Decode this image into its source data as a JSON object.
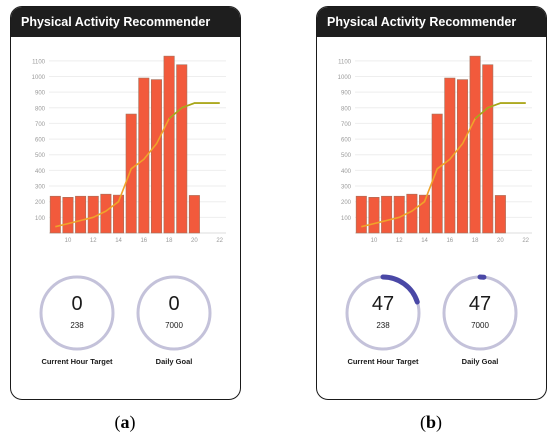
{
  "colors": {
    "bar": "#f25a3c",
    "bar_stroke": "#a4705a",
    "line": "#a2a81a",
    "line_dark": "#f0a32a",
    "ring": "#c4c2da",
    "progress": "#4a48a6",
    "appbar": "#1e1e1e"
  },
  "panels": [
    {
      "id": "a",
      "caption_open": "(",
      "caption_letter": "a",
      "caption_close": ")",
      "appbar_title": "Physical Activity Recommender",
      "gauges": {
        "current_hour": {
          "value": "0",
          "sub": "238",
          "label": "Current Hour Target",
          "progress": 0
        },
        "daily_goal": {
          "value": "0",
          "sub": "7000",
          "label": "Daily Goal",
          "progress": 0
        }
      }
    },
    {
      "id": "b",
      "caption_open": "(",
      "caption_letter": "b",
      "caption_close": ")",
      "appbar_title": "Physical Activity Recommender",
      "gauges": {
        "current_hour": {
          "value": "47",
          "sub": "238",
          "label": "Current Hour Target",
          "progress": 0.2
        },
        "daily_goal": {
          "value": "47",
          "sub": "7000",
          "label": "Daily Goal",
          "progress": 0.007
        }
      }
    }
  ],
  "chart_data": [
    {
      "type": "bar",
      "panel": "a",
      "ylim": [
        0,
        1150
      ],
      "yticks": [
        "100",
        "200",
        "300",
        "400",
        "500",
        "600",
        "700",
        "800",
        "900",
        "1000",
        "1100"
      ],
      "xticks": [
        "10",
        "12",
        "14",
        "16",
        "18",
        "20",
        "22"
      ],
      "categories": [
        "9",
        "10",
        "11",
        "12",
        "13",
        "14",
        "15",
        "16",
        "17",
        "18",
        "19",
        "20",
        "21",
        "22"
      ],
      "values": [
        235,
        228,
        235,
        235,
        248,
        242,
        760,
        990,
        980,
        1130,
        1075,
        240,
        0,
        0
      ],
      "cumulative_line": [
        40,
        60,
        80,
        100,
        140,
        200,
        410,
        470,
        570,
        730,
        800,
        830,
        830,
        830
      ]
    },
    {
      "type": "bar",
      "panel": "b",
      "ylim": [
        0,
        1150
      ],
      "yticks": [
        "100",
        "200",
        "300",
        "400",
        "500",
        "600",
        "700",
        "800",
        "900",
        "1000",
        "1100"
      ],
      "xticks": [
        "10",
        "12",
        "14",
        "16",
        "18",
        "20",
        "22"
      ],
      "categories": [
        "9",
        "10",
        "11",
        "12",
        "13",
        "14",
        "15",
        "16",
        "17",
        "18",
        "19",
        "20",
        "21",
        "22"
      ],
      "values": [
        235,
        228,
        235,
        235,
        248,
        242,
        760,
        990,
        980,
        1130,
        1075,
        240,
        0,
        0
      ],
      "cumulative_line": [
        40,
        60,
        80,
        100,
        140,
        200,
        410,
        470,
        570,
        730,
        800,
        830,
        830,
        830
      ]
    }
  ]
}
